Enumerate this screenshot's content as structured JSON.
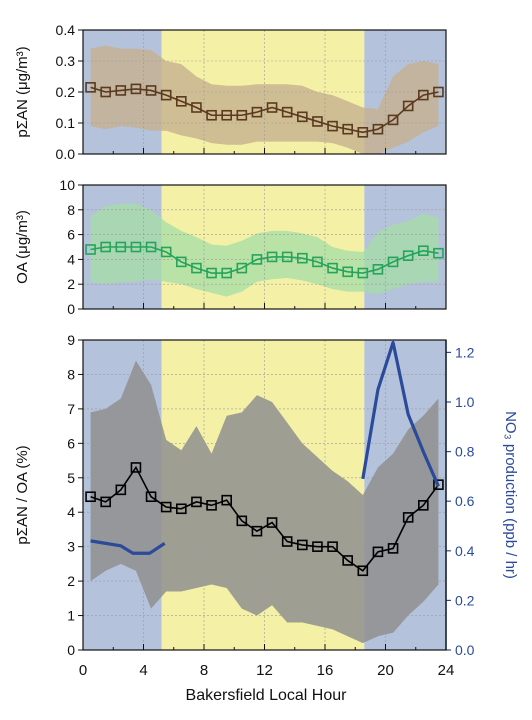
{
  "figure": {
    "xlabel": "Bakersfield Local Hour"
  },
  "colors": {
    "night_band": "#b4c2db",
    "day_band": "#f4f1a6",
    "pan_line": "#5b3a1e",
    "pan_band": "#c6b08e",
    "oa_line": "#24a55a",
    "oa_band": "#a6dca6",
    "ratio_line": "#000000",
    "ratio_band": "#8f8f8f",
    "no3_line": "#2b4a9a",
    "grid": "#9a9a9a"
  },
  "chart_data": [
    {
      "type": "line",
      "ylabel": "pΣAN (μg/m³)",
      "xlim": [
        0,
        24
      ],
      "ylim": [
        0,
        0.4
      ],
      "xticks": [
        "0",
        "4",
        "8",
        "12",
        "16",
        "20",
        "24"
      ],
      "yticks": [
        "0.0",
        "0.1",
        "0.2",
        "0.3",
        "0.4"
      ],
      "shading": {
        "night_before": [
          0,
          5.2
        ],
        "day": [
          5.2,
          18.6
        ],
        "night_after": [
          18.6,
          24
        ]
      },
      "series": [
        {
          "x": [
            0.5,
            1.5,
            2.5,
            3.5,
            4.5,
            5.5,
            6.5,
            7.5,
            8.5,
            9.5,
            10.5,
            11.5,
            12.5,
            13.5,
            14.5,
            15.5,
            16.5,
            17.5,
            18.5,
            19.5,
            20.5,
            21.5,
            22.5,
            23.5
          ],
          "values": [
            0.215,
            0.2,
            0.205,
            0.21,
            0.205,
            0.19,
            0.17,
            0.15,
            0.125,
            0.125,
            0.125,
            0.135,
            0.15,
            0.135,
            0.12,
            0.105,
            0.09,
            0.08,
            0.07,
            0.08,
            0.11,
            0.155,
            0.19,
            0.2
          ],
          "band_upper": [
            0.34,
            0.35,
            0.34,
            0.34,
            0.335,
            0.3,
            0.29,
            0.25,
            0.225,
            0.22,
            0.22,
            0.225,
            0.225,
            0.225,
            0.22,
            0.2,
            0.19,
            0.17,
            0.15,
            0.145,
            0.25,
            0.29,
            0.3,
            0.29
          ],
          "band_lower": [
            0.09,
            0.08,
            0.09,
            0.085,
            0.075,
            0.075,
            0.06,
            0.05,
            0.035,
            0.03,
            0.03,
            0.04,
            0.04,
            0.04,
            0.04,
            0.04,
            0.035,
            0.02,
            0.0,
            0.0,
            0.02,
            0.04,
            0.07,
            0.09
          ]
        }
      ]
    },
    {
      "type": "line",
      "ylabel": "OA (μg/m³)",
      "xlim": [
        0,
        24
      ],
      "ylim": [
        0,
        10
      ],
      "xticks": [
        "0",
        "4",
        "8",
        "12",
        "16",
        "20",
        "24"
      ],
      "yticks": [
        "0",
        "2",
        "4",
        "6",
        "8",
        "10"
      ],
      "shading": {
        "night_before": [
          0,
          5.2
        ],
        "day": [
          5.2,
          18.6
        ],
        "night_after": [
          18.6,
          24
        ]
      },
      "series": [
        {
          "x": [
            0.5,
            1.5,
            2.5,
            3.5,
            4.5,
            5.5,
            6.5,
            7.5,
            8.5,
            9.5,
            10.5,
            11.5,
            12.5,
            13.5,
            14.5,
            15.5,
            16.5,
            17.5,
            18.5,
            19.5,
            20.5,
            21.5,
            22.5,
            23.5
          ],
          "values": [
            4.8,
            5.0,
            5.0,
            5.0,
            5.0,
            4.6,
            3.8,
            3.3,
            2.9,
            2.9,
            3.3,
            4.0,
            4.2,
            4.2,
            4.1,
            3.8,
            3.3,
            3.0,
            2.9,
            3.2,
            3.8,
            4.3,
            4.7,
            4.5
          ],
          "band_upper": [
            7.5,
            8.3,
            8.5,
            8.5,
            8.0,
            7.0,
            6.3,
            5.8,
            5.2,
            5.1,
            5.5,
            6.1,
            6.3,
            6.3,
            6.1,
            5.8,
            5.0,
            4.7,
            4.6,
            6.2,
            6.8,
            7.1,
            7.7,
            7.4
          ],
          "band_lower": [
            2.2,
            2.0,
            2.2,
            2.2,
            2.4,
            2.2,
            2.0,
            1.6,
            1.3,
            1.0,
            1.4,
            2.2,
            2.4,
            2.5,
            2.3,
            2.0,
            1.6,
            1.4,
            1.4,
            1.2,
            1.6,
            2.0,
            2.2,
            2.2
          ]
        }
      ]
    },
    {
      "type": "line",
      "ylabel": "pΣAN / OA (%)",
      "y2label": "NO₃ production (ppb / hr)",
      "xlabel": "Bakersfield Local Hour",
      "xlim": [
        0,
        24
      ],
      "ylim": [
        0,
        9
      ],
      "y2lim": [
        0,
        1.25
      ],
      "xticks": [
        "0",
        "4",
        "8",
        "12",
        "16",
        "20",
        "24"
      ],
      "yticks": [
        "0",
        "1",
        "2",
        "3",
        "4",
        "5",
        "6",
        "7",
        "8",
        "9"
      ],
      "y2ticks": [
        "0.0",
        "0.2",
        "0.4",
        "0.6",
        "0.8",
        "1.0",
        "1.2"
      ],
      "shading": {
        "night_before": [
          0,
          5.2
        ],
        "day": [
          5.2,
          18.6
        ],
        "night_after": [
          18.6,
          24
        ]
      },
      "series": [
        {
          "x": [
            0.5,
            1.5,
            2.5,
            3.5,
            4.5,
            5.5,
            6.5,
            7.5,
            8.5,
            9.5,
            10.5,
            11.5,
            12.5,
            13.5,
            14.5,
            15.5,
            16.5,
            17.5,
            18.5,
            19.5,
            20.5,
            21.5,
            22.5,
            23.5
          ],
          "values": [
            4.45,
            4.3,
            4.65,
            5.3,
            4.45,
            4.15,
            4.1,
            4.3,
            4.2,
            4.35,
            3.75,
            3.45,
            3.7,
            3.15,
            3.05,
            3.0,
            3.0,
            2.6,
            2.3,
            2.85,
            2.95,
            3.85,
            4.2,
            4.8
          ],
          "band_upper": [
            6.9,
            7.0,
            7.3,
            8.4,
            7.7,
            6.1,
            5.8,
            6.5,
            5.7,
            6.8,
            6.9,
            7.4,
            7.2,
            6.6,
            6.0,
            5.6,
            5.2,
            4.9,
            4.5,
            5.3,
            5.7,
            6.4,
            6.8,
            7.3
          ],
          "band_lower": [
            2.0,
            2.3,
            2.5,
            2.3,
            1.2,
            1.7,
            1.7,
            1.8,
            1.9,
            1.8,
            1.2,
            1.0,
            1.3,
            0.8,
            0.8,
            0.7,
            0.6,
            0.4,
            0.2,
            0.4,
            0.5,
            1.0,
            1.4,
            1.9
          ]
        },
        {
          "axis": "right",
          "segments": [
            {
              "x": [
                0.5,
                1.5,
                2.5,
                3.3,
                4.4,
                5.4
              ],
              "values": [
                0.44,
                0.43,
                0.42,
                0.39,
                0.39,
                0.43
              ]
            },
            {
              "x": [
                18.5,
                19.5,
                20.5,
                21.5,
                22.5,
                23.5
              ],
              "values": [
                0.69,
                1.05,
                1.24,
                0.95,
                0.8,
                0.66
              ]
            }
          ]
        }
      ]
    }
  ]
}
